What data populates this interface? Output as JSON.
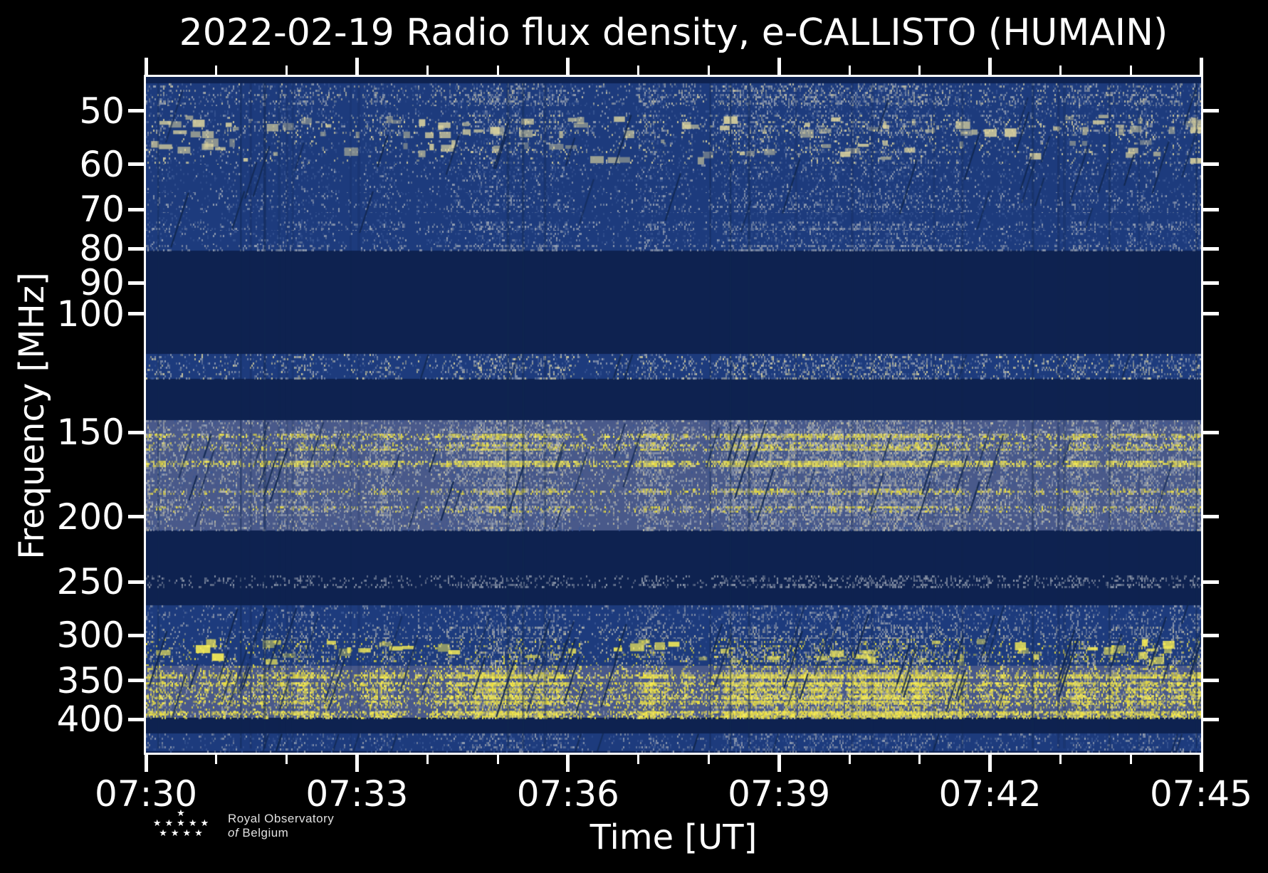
{
  "figure": {
    "background": "#000000"
  },
  "chart_data": {
    "type": "heatmap",
    "title": "2022-02-19 Radio flux density, e-CALLISTO (HUMAIN)",
    "xlabel": "Time [UT]",
    "ylabel": "Frequency [MHz]",
    "grid": false,
    "legend": "none",
    "x_start": "07:30",
    "x_end": "07:45",
    "x_total_minutes": 15,
    "x_major_ticks": [
      {
        "label": "07:30",
        "minute": 0
      },
      {
        "label": "07:33",
        "minute": 3
      },
      {
        "label": "07:36",
        "minute": 6
      },
      {
        "label": "07:39",
        "minute": 9
      },
      {
        "label": "07:42",
        "minute": 12
      },
      {
        "label": "07:45",
        "minute": 15
      }
    ],
    "x_minor_tick_every_minutes": 1,
    "y_scale": "log",
    "y_min_mhz": 44.5,
    "y_max_mhz": 448,
    "y_ticks_mhz": [
      50,
      60,
      70,
      80,
      90,
      100,
      150,
      200,
      250,
      300,
      350,
      400
    ],
    "colormap": {
      "background": "#0e2250",
      "blue": "#1d3b7d",
      "blue_light": "#3a5794",
      "slate": "#49598a",
      "pale": "#9aa4b4",
      "pale_warm": "#c7c3a6",
      "cream": "#ddd49e",
      "gray": "#8d96a8",
      "yellow": "#f0e23c",
      "yellow_bright": "#faef55",
      "streak": "#11274f",
      "axis": "#ffffff"
    },
    "bands": [
      {
        "name": "46-49 MHz noise",
        "mhz": [
          45.5,
          49.2
        ],
        "base": "blue",
        "palette": [
          "pale",
          "blue_light",
          "pale_warm"
        ],
        "density": 0.5
      },
      {
        "name": "49-51 MHz",
        "mhz": [
          49.2,
          50.6
        ],
        "base": "blue",
        "palette": [
          "blue_light",
          "pale"
        ],
        "density": 0.25
      },
      {
        "name": "51-55 MHz bursts",
        "mhz": [
          50.6,
          54.9
        ],
        "base": "blue",
        "palette": [
          "pale",
          "blue_light",
          "cream"
        ],
        "density": 0.42,
        "blobs": {
          "color": "cream",
          "count": 70
        }
      },
      {
        "name": "55-60 MHz",
        "mhz": [
          54.9,
          60.1
        ],
        "base": "blue",
        "palette": [
          "blue_light",
          "pale",
          "cream"
        ],
        "density": 0.38,
        "blobs": {
          "color": "cream",
          "count": 45
        }
      },
      {
        "name": "60-66 MHz",
        "mhz": [
          60.1,
          66.2
        ],
        "base": "blue",
        "palette": [
          "blue_light",
          "pale"
        ],
        "density": 0.26
      },
      {
        "name": "66-71 MHz",
        "mhz": [
          66.2,
          70.9
        ],
        "base": "blue",
        "palette": [
          "pale",
          "blue_light"
        ],
        "density": 0.36
      },
      {
        "name": "71-73 MHz",
        "mhz": [
          70.9,
          73.0
        ],
        "base": "blue",
        "palette": [
          "blue_light"
        ],
        "density": 0.24
      },
      {
        "name": "73-75 MHz",
        "mhz": [
          73.0,
          75.3
        ],
        "base": "blue",
        "palette": [
          "pale",
          "blue_light"
        ],
        "density": 0.48
      },
      {
        "name": "75-79 MHz",
        "mhz": [
          75.3,
          79.1
        ],
        "base": "blue",
        "palette": [
          "blue_light",
          "pale"
        ],
        "density": 0.28
      },
      {
        "name": "79-81 MHz",
        "mhz": [
          79.1,
          80.6
        ],
        "base": "blue",
        "palette": [
          "pale",
          "gray"
        ],
        "density": 0.44
      },
      {
        "name": "115-125 MHz airband",
        "mhz": [
          114.8,
          125.0
        ],
        "base": "blue",
        "palette": [
          "pale",
          "cream",
          "blue_light"
        ],
        "density": 0.5
      },
      {
        "name": "144-210 MHz broadcast band",
        "mhz": [
          143.7,
          209.6
        ],
        "base": "slate",
        "palette": [
          "pale",
          "pale_warm",
          "gray",
          "blue_light"
        ],
        "density": 0.6
      },
      {
        "name": "emission line 152 MHz",
        "mhz": [
          150.5,
          154.1
        ],
        "palette": [
          "yellow",
          "yellow_bright",
          "pale_warm"
        ],
        "density": 0.85
      },
      {
        "name": "emission line 157 MHz",
        "mhz": [
          155.2,
          158.8
        ],
        "palette": [
          "yellow",
          "pale_warm",
          "yellow_bright"
        ],
        "density": 0.75
      },
      {
        "name": "emission line 167 MHz",
        "mhz": [
          165.1,
          168.6
        ],
        "palette": [
          "yellow_bright",
          "yellow"
        ],
        "density": 0.92
      },
      {
        "name": "emission line 183 MHz",
        "mhz": [
          181.5,
          184.9
        ],
        "palette": [
          "yellow",
          "pale_warm"
        ],
        "density": 0.8
      },
      {
        "name": "emission line 195 MHz",
        "mhz": [
          193.0,
          196.5
        ],
        "palette": [
          "yellow",
          "pale_warm"
        ],
        "density": 0.55
      },
      {
        "name": "244-255 MHz",
        "mhz": [
          244.3,
          254.7
        ],
        "palette": [
          "gray",
          "pale"
        ],
        "density": 0.42
      },
      {
        "name": "270-291 MHz",
        "mhz": [
          270.5,
          291.1
        ],
        "base": "blue",
        "palette": [
          "gray",
          "pale",
          "blue_light"
        ],
        "density": 0.4
      },
      {
        "name": "291-303 MHz",
        "mhz": [
          291.1,
          303.4
        ],
        "base": "blue",
        "palette": [
          "pale",
          "pale_warm",
          "gray"
        ],
        "density": 0.5
      },
      {
        "name": "303-333 MHz",
        "mhz": [
          303.4,
          332.8
        ],
        "base": "blue",
        "palette": [
          "pale_warm",
          "yellow",
          "gray",
          "blue_light"
        ],
        "density": 0.55,
        "blobs": {
          "color": "yellow_bright",
          "count": 55
        }
      },
      {
        "name": "333-398 MHz strong band",
        "mhz": [
          332.8,
          397.6
        ],
        "base": "slate",
        "palette": [
          "yellow",
          "yellow_bright",
          "pale_warm",
          "gray"
        ],
        "density": 0.72
      },
      {
        "name": "emission line 345 MHz",
        "mhz": [
          343.0,
          348.0
        ],
        "palette": [
          "yellow_bright",
          "yellow"
        ],
        "density": 0.9
      },
      {
        "name": "emission line 354 MHz",
        "mhz": [
          352.0,
          356.0
        ],
        "palette": [
          "yellow_bright",
          "yellow"
        ],
        "density": 0.85
      },
      {
        "name": "emission line 362 MHz",
        "mhz": [
          360.0,
          365.0
        ],
        "palette": [
          "yellow",
          "yellow_bright"
        ],
        "density": 0.8
      },
      {
        "name": "emission line 370 MHz",
        "mhz": [
          368.0,
          372.0
        ],
        "palette": [
          "yellow_bright"
        ],
        "density": 0.85
      },
      {
        "name": "emission line 377 MHz",
        "mhz": [
          375.0,
          379.0
        ],
        "palette": [
          "yellow",
          "yellow_bright"
        ],
        "density": 0.8
      },
      {
        "name": "emission line 393 MHz",
        "mhz": [
          389.0,
          397.0
        ],
        "palette": [
          "yellow_bright",
          "yellow"
        ],
        "density": 0.95
      },
      {
        "name": "419-446 MHz",
        "mhz": [
          419.4,
          446.0
        ],
        "base": "blue",
        "palette": [
          "blue_light",
          "pale",
          "gray"
        ],
        "density": 0.38
      }
    ],
    "streak_zones": [
      {
        "mhz": [
          45.5,
          80.6
        ],
        "count": 34
      },
      {
        "mhz": [
          114.8,
          125.0
        ],
        "count": 6
      },
      {
        "mhz": [
          143.7,
          209.6
        ],
        "count": 40
      },
      {
        "mhz": [
          266.0,
          397.6
        ],
        "count": 64
      },
      {
        "mhz": [
          419.4,
          446.0
        ],
        "count": 12
      }
    ],
    "dropout_columns": 26
  },
  "logo": {
    "line1": "Royal Observatory",
    "line2_prefix": "of",
    "line2": "Belgium",
    "star_char": "★",
    "stars_rows": [
      1,
      5,
      4
    ]
  }
}
